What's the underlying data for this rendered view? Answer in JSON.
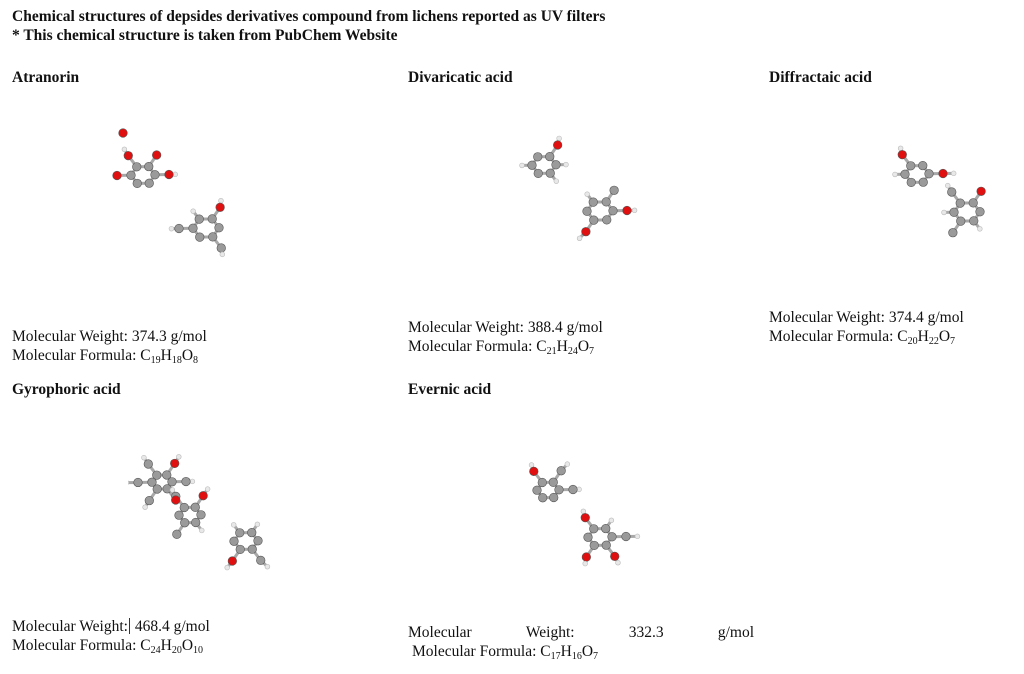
{
  "document": {
    "title": "Chemical structures of depsides derivatives compound from lichens reported as UV filters",
    "note": "* This chemical structure is taken from PubChem Website"
  },
  "labels": {
    "mw": "Molecular Weight:",
    "mf": "Molecular Formula:",
    "unit": "g/mol"
  },
  "compounds": [
    {
      "name": "Atranorin",
      "mw": "374.3",
      "formula": [
        [
          "C",
          "19"
        ],
        [
          "H",
          "18"
        ],
        [
          "O",
          "8"
        ]
      ]
    },
    {
      "name": "Divaricatic acid",
      "mw": "388.4",
      "formula": [
        [
          "C",
          "21"
        ],
        [
          "H",
          "24"
        ],
        [
          "O",
          "7"
        ]
      ]
    },
    {
      "name": "Diffractaic acid",
      "mw": "374.4",
      "formula": [
        [
          "C",
          "20"
        ],
        [
          "H",
          "22"
        ],
        [
          "O",
          "7"
        ]
      ]
    },
    {
      "name": "Gyrophoric acid",
      "mw": "468.4",
      "formula": [
        [
          "C",
          "24"
        ],
        [
          "H",
          "20"
        ],
        [
          "O",
          "10"
        ]
      ]
    },
    {
      "name": "Evernic acid",
      "mw": "332.3",
      "formula": [
        [
          "C",
          "17"
        ],
        [
          "H",
          "16"
        ],
        [
          "O",
          "7"
        ]
      ],
      "mw_split": [
        "Molecular",
        "Weight:",
        "332.3",
        "g/mol"
      ]
    }
  ],
  "colors": {
    "carbon": "#9a9a9a",
    "oxygen": "#e01010",
    "hydrogen": "#e8e8e8",
    "bond": "#a8a8a8"
  },
  "icons": {
    "structure": "ball-and-stick-3d-molecule"
  }
}
